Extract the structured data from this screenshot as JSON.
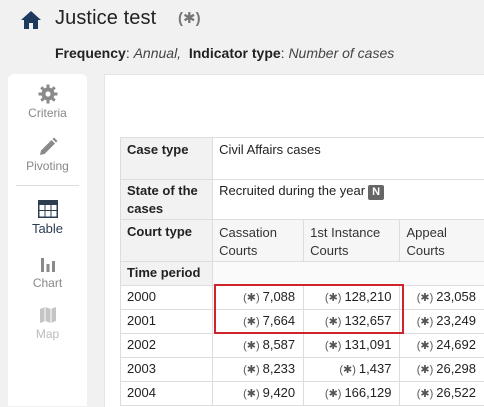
{
  "header": {
    "title": "Justice test",
    "title_flag": "(✱)",
    "frequency_label": "Frequency",
    "frequency_value": "Annual,",
    "indicator_label": "Indicator type",
    "indicator_value": "Number of cases"
  },
  "sidebar": {
    "criteria": "Criteria",
    "pivoting": "Pivoting",
    "table": "Table",
    "chart": "Chart",
    "map": "Map"
  },
  "table": {
    "case_type_label": "Case type",
    "case_type_value": "Civil Affairs cases",
    "state_label": "State of the cases",
    "state_value": "Recruited during the year",
    "state_badge": "N",
    "court_type_label": "Court type",
    "courts": [
      "Cassation Courts",
      "1st Instance Courts",
      "Appeal Courts"
    ],
    "time_period_label": "Time period",
    "flag": "(✱)",
    "rows": [
      {
        "year": "2000",
        "v1": "7,088",
        "v2": "128,210",
        "v3": "23,058"
      },
      {
        "year": "2001",
        "v1": "7,664",
        "v2": "132,657",
        "v3": "23,249"
      },
      {
        "year": "2002",
        "v1": "8,587",
        "v2": "131,091",
        "v3": "24,692"
      },
      {
        "year": "2003",
        "v1": "8,233",
        "v2": "1,437",
        "v3": "26,298"
      },
      {
        "year": "2004",
        "v1": "9,420",
        "v2": "166,129",
        "v3": "26,522"
      }
    ]
  },
  "colors": {
    "highlight": "#d0232b",
    "accent": "#2c3e50",
    "badge": "#666666"
  }
}
